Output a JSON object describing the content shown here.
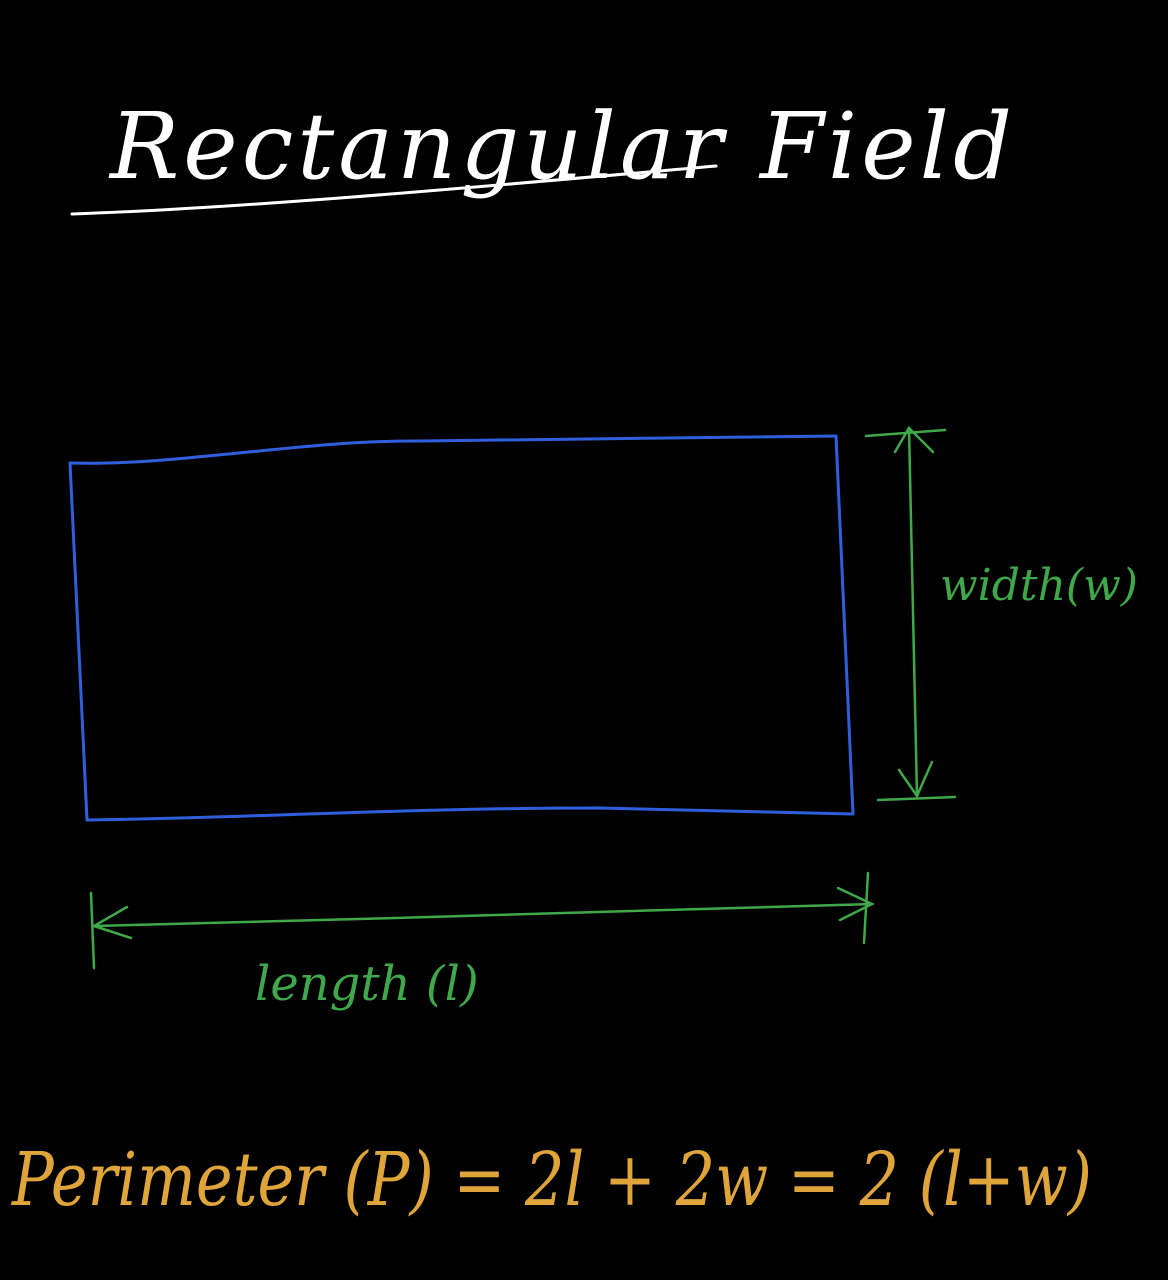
{
  "title": "Rectangular Field",
  "labels": {
    "width": "width(w)",
    "length": "length (l)"
  },
  "formula": "Perimeter (P) = 2l + 2w = 2 (l+w)",
  "colors": {
    "background": "#000000",
    "title": "#ffffff",
    "rectangle": "#2f5fdc",
    "dimension": "#3fa84a",
    "formula": "#e0a53a"
  }
}
